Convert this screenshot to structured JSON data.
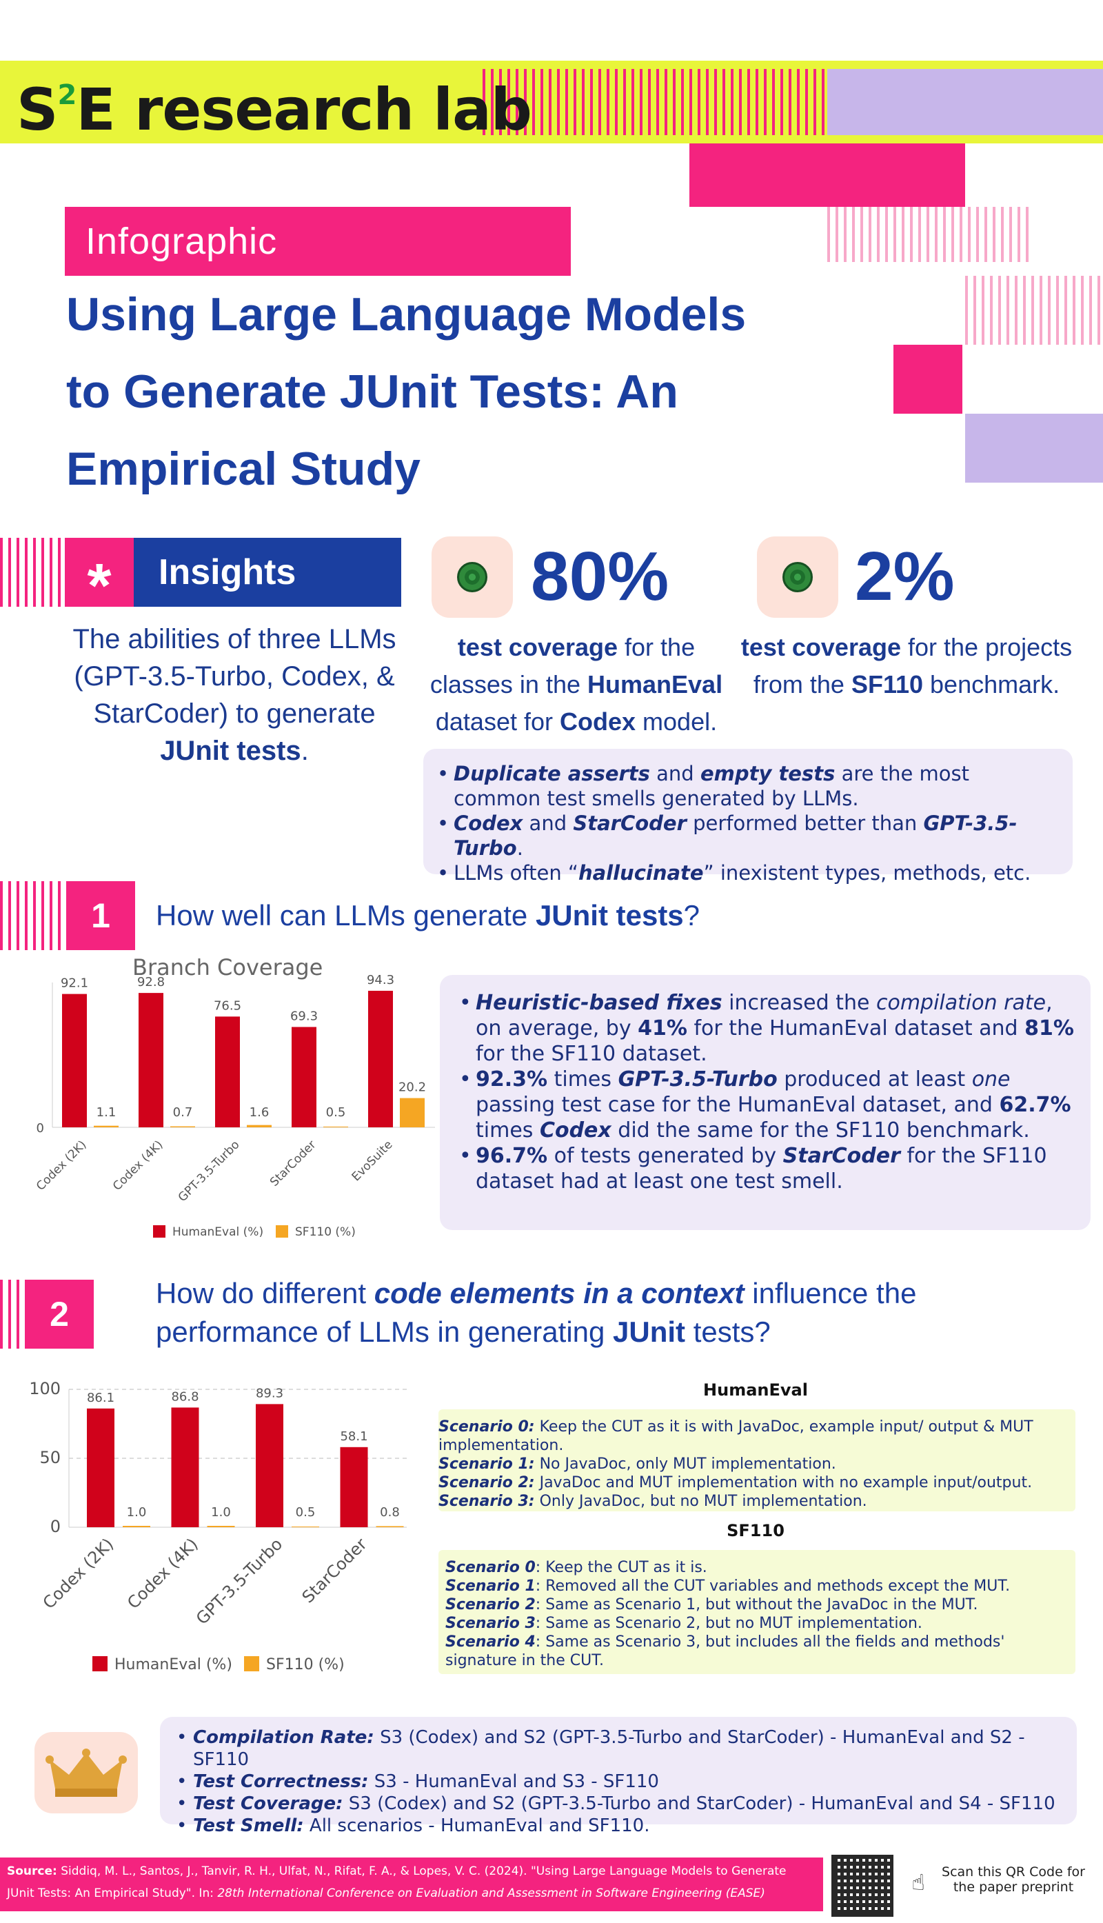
{
  "header": {
    "logo_s": "S",
    "logo_sup": "2",
    "logo_rest": "E research lab"
  },
  "tag": "Infographic",
  "title": {
    "line1": "Using Large Language Models",
    "line2": "to Generate JUnit Tests: An",
    "line3": "Empirical Study"
  },
  "insights": {
    "asterisk": "*",
    "label": "Insights",
    "lead_pre": "The abilities of three LLMs (GPT-3.5-Turbo, Codex, & StarCoder) to generate ",
    "lead_bold": "JUnit tests",
    "lead_post": "."
  },
  "stats": [
    {
      "value": "80%",
      "b1": "test coverage",
      "t1": " for the classes in the ",
      "b2": "HumanEval",
      "t2": " dataset for ",
      "b3": "Codex",
      "t3": " model."
    },
    {
      "value": "2%",
      "b1": "test coverage",
      "t1": " for the projects from the ",
      "b2": "SF110",
      "t2": " benchmark."
    }
  ],
  "insight_bullets": {
    "b1_i1": "Duplicate asserts",
    "b1_t1": " and ",
    "b1_i2": "empty tests",
    "b1_t2": " are the most common test smells generated by LLMs.",
    "b2_i1": "Codex",
    "b2_t1": " and ",
    "b2_i2": "StarCoder",
    "b2_t2": " performed better than ",
    "b2_i3": "GPT-3.5-Turbo",
    "b2_t3": ".",
    "b3_t1": "LLMs often “",
    "b3_i1": "hallucinate",
    "b3_t2": "” inexistent types, methods, etc."
  },
  "q1": {
    "number": "1",
    "text_pre": "How well can LLMs generate ",
    "text_bold": "JUnit tests",
    "text_post": "?"
  },
  "q1_bullets": {
    "a_i1": "Heuristic-based fixes",
    "a_t1": " increased the ",
    "a_i2": "compilation rate",
    "a_t2": ", on average, by ",
    "a_b1": "41%",
    "a_t3": " for the HumanEval dataset and ",
    "a_b2": "81%",
    "a_t4": " for the SF110 dataset.",
    "b_b1": "92.3%",
    "b_t1": " times ",
    "b_i1": "GPT-3.5-Turbo",
    "b_t2": " produced at least ",
    "b_i2": "one",
    "b_t3": " passing test case for the HumanEval dataset, and ",
    "b_b2": "62.7%",
    "b_t4": " times ",
    "b_i3": "Codex",
    "b_t5": " did the same for the SF110 benchmark.",
    "c_b1": "96.7%",
    "c_t1": " of tests generated by ",
    "c_i1": "StarCoder",
    "c_t2": " for the SF110  dataset had at least one test smell."
  },
  "q2": {
    "number": "2",
    "text_pre": "How do different ",
    "text_bold": "code elements in a context",
    "text_mid": " influence the performance of LLMs in generating ",
    "text_bold2": "JUnit",
    "text_post": " tests?"
  },
  "scenarios": {
    "humaneval_title": "HumanEval",
    "he": [
      {
        "label": "Scenario 0:",
        "text": " Keep the CUT as it is with JavaDoc, example input/ output & MUT implementation."
      },
      {
        "label": "Scenario 1:",
        "text": " No JavaDoc, only MUT implementation."
      },
      {
        "label": "Scenario 2:",
        "text": " JavaDoc and MUT implementation with no example input/output."
      },
      {
        "label": "Scenario 3:",
        "text": " Only JavaDoc, but no MUT implementation."
      }
    ],
    "sf110_title": "SF110",
    "sf": [
      {
        "label": "Scenario 0",
        "text": ": Keep the CUT as it is."
      },
      {
        "label": "Scenario 1",
        "text": ": Removed all the CUT variables and methods except the MUT."
      },
      {
        "label": "Scenario 2",
        "text": ": Same as Scenario 1, but without the JavaDoc in the MUT."
      },
      {
        "label": "Scenario 3",
        "text": ": Same as Scenario 2, but no MUT implementation."
      },
      {
        "label": "Scenario 4",
        "text": ": Same as Scenario 3, but includes all the fields and methods' signature in the CUT."
      }
    ]
  },
  "summary": [
    {
      "label": "Compilation Rate:",
      "text": " S3 (Codex) and S2 (GPT-3.5-Turbo and StarCoder) - HumanEval and S2 - SF110"
    },
    {
      "label": "Test Correctness:",
      "text": " S3 - HumanEval and S3 - SF110"
    },
    {
      "label": "Test Coverage:",
      "text": " S3 (Codex) and S2 (GPT-3.5-Turbo and StarCoder) - HumanEval and S4 - SF110"
    },
    {
      "label": "Test Smell:",
      "text": " All scenarios - HumanEval and SF110."
    }
  ],
  "footer": {
    "source_label": "Source:",
    "source_text": " Siddiq, M. L., Santos, J., Tanvir, R. H., Ulfat, N., Rifat, F. A., & Lopes, V. C. (2024). \"Using Large Language Models to Generate JUnit Tests: An Empirical Study\". In: ",
    "source_venue": "28th International Conference on Evaluation and Assessment in Software Engineering (EASE)",
    "qr_note": "Scan this QR Code for the paper preprint"
  },
  "colors": {
    "pink": "#f4237f",
    "navy": "#1b3fa0",
    "lime": "#e8f53a",
    "lavender": "#c7b6ea",
    "red_bar": "#d0021b",
    "orange_bar": "#f5a623"
  },
  "chart_data": [
    {
      "type": "bar",
      "title": "Branch Coverage",
      "categories": [
        "Codex (2K)",
        "Codex (4K)",
        "GPT-3.5-Turbo",
        "StarCoder",
        "EvoSuite"
      ],
      "series": [
        {
          "name": "HumanEval (%)",
          "values": [
            92.1,
            92.8,
            76.5,
            69.3,
            94.3
          ]
        },
        {
          "name": "SF110 (%)",
          "values": [
            1.1,
            0.7,
            1.6,
            0.5,
            20.2
          ]
        }
      ],
      "y_ticks": [
        "0"
      ],
      "ylim": [
        0,
        100
      ],
      "legend": "bottom"
    },
    {
      "type": "bar",
      "title": "",
      "categories": [
        "Codex (2K)",
        "Codex (4K)",
        "GPT-3.5-Turbo",
        "StarCoder"
      ],
      "series": [
        {
          "name": "HumanEval (%)",
          "values": [
            86.1,
            86.8,
            89.3,
            58.1
          ]
        },
        {
          "name": "SF110 (%)",
          "values": [
            1.0,
            1.0,
            0.5,
            0.8
          ]
        }
      ],
      "y_ticks": [
        "100",
        "50",
        "0"
      ],
      "ylim": [
        0,
        100
      ],
      "grid": true,
      "legend": "bottom"
    }
  ]
}
